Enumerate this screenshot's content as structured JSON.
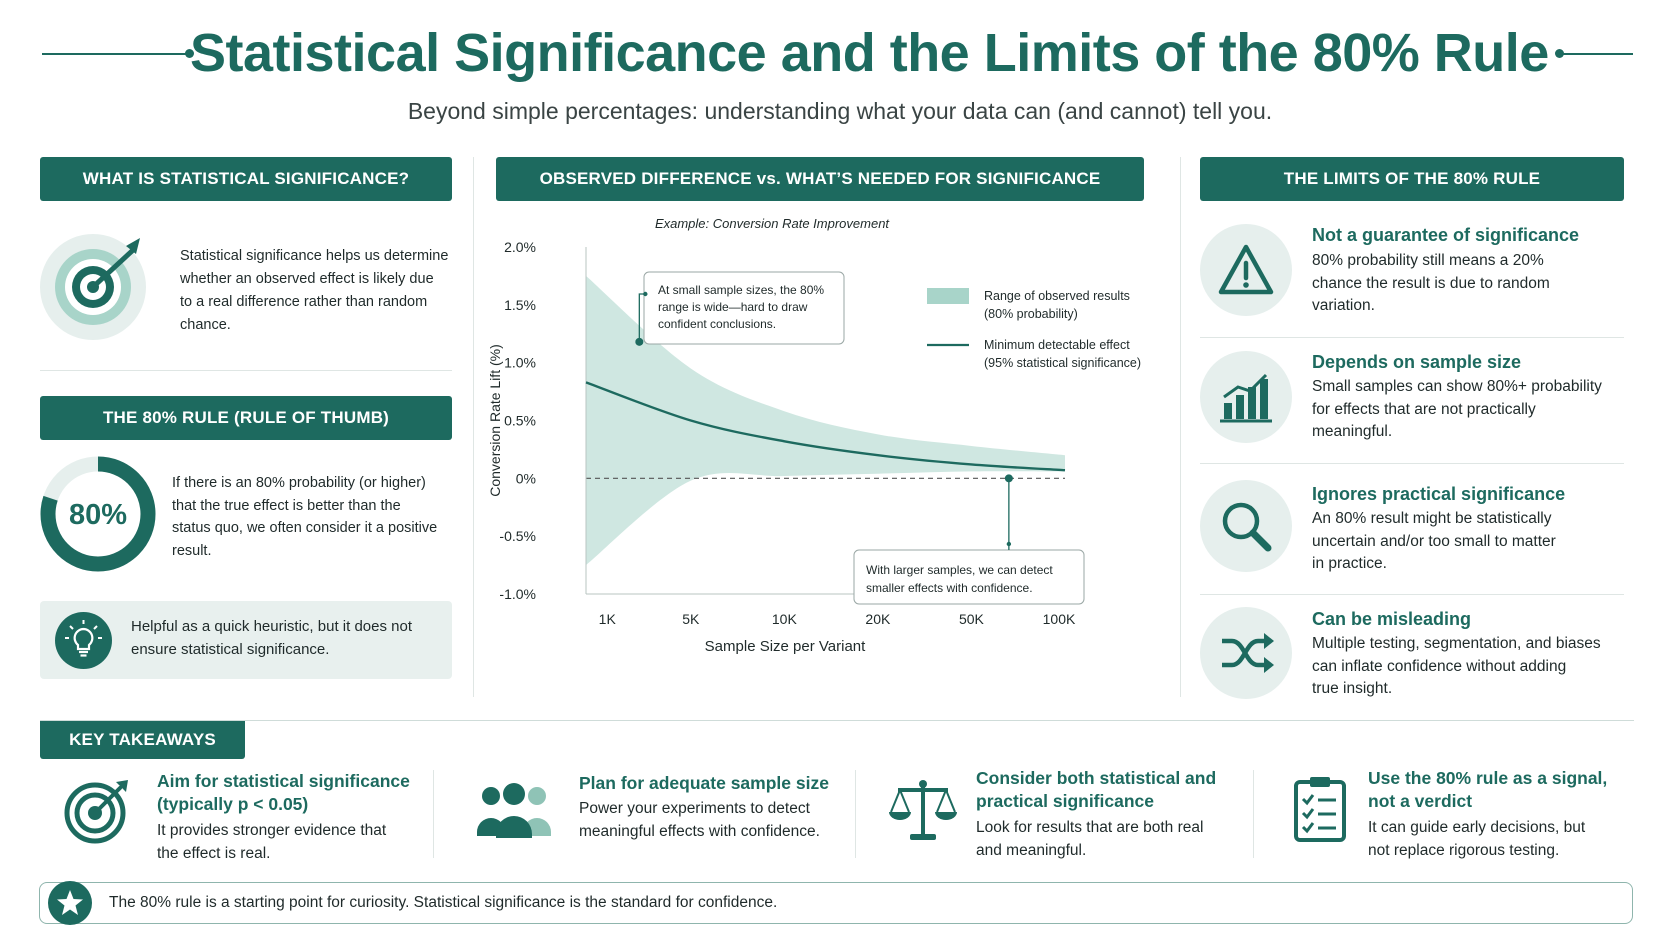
{
  "header": {
    "title": "Statistical Significance and the Limits of the 80% Rule",
    "subtitle": "Beyond simple percentages: understanding what your data can (and cannot) tell you."
  },
  "left": {
    "what_head": "WHAT IS STATISTICAL SIGNIFICANCE?",
    "what_lines": [
      "Statistical significance helps us determine",
      "whether an observed effect is likely due",
      "to a real difference rather than random",
      "chance."
    ],
    "rule_head": "THE 80% RULE (RULE OF THUMB)",
    "rule_donut_label": "80%",
    "rule_donut_value": 0.8,
    "rule_lines": [
      "If there is an 80% probability (or higher)",
      "that the true effect is better than the",
      "status quo, we often consider it a positive",
      "result."
    ],
    "heuristic_lines": [
      "Helpful as a quick heuristic, but it does not",
      "ensure statistical significance."
    ]
  },
  "middle": {
    "head": "OBSERVED DIFFERENCE vs. WHAT’S NEEDED FOR SIGNIFICANCE"
  },
  "chart_data": {
    "type": "area",
    "title": "Example: Conversion Rate Improvement",
    "xlabel": "Sample Size per Variant",
    "ylabel": "Conversion Rate Lift (%)",
    "x_tick_labels": [
      "1K",
      "5K",
      "10K",
      "20K",
      "50K",
      "100K"
    ],
    "y_tick_labels": [
      "2.0%",
      "1.5%",
      "1.0%",
      "0.5%",
      "0%",
      "-0.5%",
      "-1.0%"
    ],
    "ylim": [
      -1.0,
      2.0
    ],
    "x_positions": [
      0,
      1,
      2,
      3,
      4,
      5
    ],
    "series": [
      {
        "name": "Range of observed results (80% probability) — upper",
        "values": [
          1.75,
          0.95,
          0.58,
          0.38,
          0.28,
          0.2
        ]
      },
      {
        "name": "Range of observed results (80% probability) — lower",
        "values": [
          -0.75,
          -0.02,
          0.02,
          0.04,
          0.06,
          0.06
        ]
      },
      {
        "name": "Minimum detectable effect (95% statistical significance)",
        "values": [
          0.83,
          0.5,
          0.32,
          0.2,
          0.12,
          0.07
        ]
      }
    ],
    "legend": [
      {
        "label_line1": "Range of observed results",
        "label_line2": "(80% probability)",
        "color": "#a8d4c9"
      },
      {
        "label_line1": "Minimum detectable effect",
        "label_line2": "(95% statistical significance)",
        "color": "#1d6a5f"
      }
    ],
    "legend_position": "top-right",
    "annotations": [
      {
        "lines": [
          "At small sample sizes, the 80%",
          "range is wide—hard to draw",
          "confident conclusions."
        ],
        "point": [
          0.45,
          1.18
        ]
      },
      {
        "lines": [
          "With larger samples, we can detect",
          "smaller effects with confidence."
        ],
        "point": [
          4.4,
          0.0
        ]
      }
    ],
    "reference_line": 0,
    "grid": false
  },
  "limits": {
    "head": "THE LIMITS OF THE 80% RULE",
    "items": [
      {
        "title": "Not a guarantee of significance",
        "lines": [
          "80% probability still means a 20%",
          "chance the result is due to random",
          "variation."
        ],
        "icon": "warning-icon"
      },
      {
        "title": "Depends on sample size",
        "lines": [
          "Small samples can show 80%+ probability",
          "for effects that are not practically",
          "meaningful."
        ],
        "icon": "bar-chart-icon"
      },
      {
        "title": "Ignores practical significance",
        "lines": [
          "An 80% result might be statistically",
          "uncertain and/or too small to matter",
          "in practice."
        ],
        "icon": "magnifier-icon"
      },
      {
        "title": "Can be misleading",
        "lines": [
          "Multiple testing, segmentation, and biases",
          "can inflate confidence without adding",
          "true insight."
        ],
        "icon": "shuffle-icon"
      }
    ]
  },
  "takeaways": {
    "head": "KEY TAKEAWAYS",
    "items": [
      {
        "title_lines": [
          "Aim for statistical significance",
          "(typically p < 0.05)"
        ],
        "lines": [
          "It provides stronger evidence that",
          "the effect is real."
        ],
        "icon": "target-icon"
      },
      {
        "title_lines": [
          "Plan for adequate sample size"
        ],
        "lines": [
          "Power your experiments to detect",
          "meaningful effects with confidence."
        ],
        "icon": "people-icon"
      },
      {
        "title_lines": [
          "Consider both statistical and",
          "practical significance"
        ],
        "lines": [
          "Look for results that are both real",
          "and meaningful."
        ],
        "icon": "scale-icon"
      },
      {
        "title_lines": [
          "Use the 80% rule as a signal,",
          "not a verdict"
        ],
        "lines": [
          "It can guide early decisions, but",
          "not replace rigorous testing."
        ],
        "icon": "clipboard-icon"
      }
    ]
  },
  "footer": {
    "text": "The 80% rule is a starting point for curiosity. Statistical significance is the standard for confidence."
  },
  "colors": {
    "primary": "#1d6a5f",
    "band": "#a8d4c9",
    "light_bg": "#e6efed"
  }
}
